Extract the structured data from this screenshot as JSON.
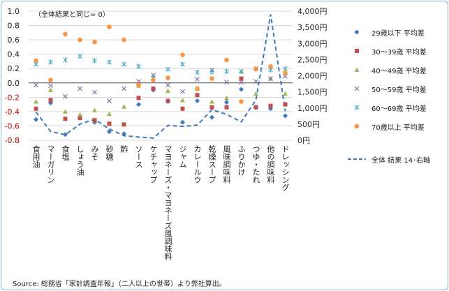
{
  "chart_data": {
    "type": "scatter",
    "note": "（全体結果と同じ= 0）",
    "source": "Source: 総務省「家計調査年報」（二人以上の世帯）より弊社算出。",
    "categories": [
      "食用油",
      "マーガリン",
      "食塩",
      "しょう油",
      "みそ",
      "砂糖",
      "酢",
      "ソース",
      "ケチャップ",
      "マヨネーズ・マヨネーズ風調味料",
      "ジャム",
      "カレールウ",
      "乾燥スープ",
      "風味調味料",
      "ふりかけ",
      "つゆ・たれ",
      "他の調味料",
      "ドレッシング"
    ],
    "y_left": {
      "ylim": [
        -0.8,
        1.0
      ],
      "ticks": [
        "1.0",
        "0.8",
        "0.6",
        "0.4",
        "0.2",
        "0.0",
        "-0.2",
        "-0.4",
        "-0.6",
        "-0.8"
      ]
    },
    "y_right": {
      "ylim": [
        0,
        4000
      ],
      "ticks": [
        "4,000円",
        "3,500円",
        "3,000円",
        "2,500円",
        "2,000円",
        "1,500円",
        "1,000円",
        "500円",
        "0円"
      ]
    },
    "series": [
      {
        "name": "29歳以下 平均差",
        "marker": "diamond",
        "color": "#3f79bd",
        "values": [
          -0.51,
          -0.28,
          -0.72,
          -0.47,
          -0.55,
          -0.68,
          -0.71,
          -0.3,
          -0.1,
          -0.26,
          -0.55,
          -0.25,
          -0.48,
          -0.27,
          -0.09,
          -0.34,
          -0.36,
          -0.46
        ]
      },
      {
        "name": "30〜39歳 平均差",
        "marker": "square",
        "color": "#c0504d",
        "values": [
          -0.36,
          -0.24,
          -0.5,
          -0.49,
          -0.52,
          -0.57,
          -0.58,
          -0.21,
          -0.08,
          -0.25,
          -0.36,
          -0.17,
          -0.34,
          -0.34,
          0.06,
          -0.34,
          -0.32,
          -0.3
        ]
      },
      {
        "name": "40〜49歳 平均差",
        "marker": "triangle",
        "color": "#9bbb59",
        "values": [
          -0.26,
          -0.1,
          -0.4,
          -0.44,
          -0.38,
          -0.43,
          -0.33,
          -0.04,
          0.07,
          -0.11,
          -0.24,
          -0.08,
          -0.26,
          -0.21,
          0.16,
          -0.15,
          0.06,
          -0.15
        ]
      },
      {
        "name": "50〜59歳 平均差",
        "marker": "x",
        "color": "#8064a2",
        "values": [
          -0.03,
          -0.04,
          -0.19,
          -0.08,
          -0.13,
          -0.25,
          -0.08,
          0.02,
          0.11,
          -0.03,
          -0.12,
          0.05,
          0.18,
          0.01,
          0.01,
          0.02,
          0.06,
          0.09
        ]
      },
      {
        "name": "60〜69歳 平均差",
        "marker": "asterisk",
        "color": "#4bacc6",
        "values": [
          0.26,
          0.29,
          0.32,
          0.37,
          0.31,
          0.29,
          0.26,
          0.23,
          0.07,
          0.19,
          0.26,
          0.15,
          0.15,
          0.16,
          0.16,
          0.2,
          0.18,
          0.2
        ]
      },
      {
        "name": "70歳以上 平均差",
        "marker": "circle",
        "color": "#f79646",
        "values": [
          0.31,
          0.04,
          0.68,
          0.6,
          0.57,
          0.78,
          0.6,
          -0.03,
          0.04,
          0.07,
          0.39,
          -0.08,
          0.06,
          0.32,
          -0.26,
          0.19,
          0.23,
          0.14
        ]
      },
      {
        "name": "全体 結果 14･右軸",
        "marker": "dashed-line",
        "color": "#3f79bd",
        "axis": "right",
        "values": [
          880,
          270,
          170,
          500,
          650,
          350,
          140,
          100,
          70,
          460,
          430,
          470,
          950,
          800,
          570,
          1250,
          3900,
          900
        ]
      }
    ]
  }
}
